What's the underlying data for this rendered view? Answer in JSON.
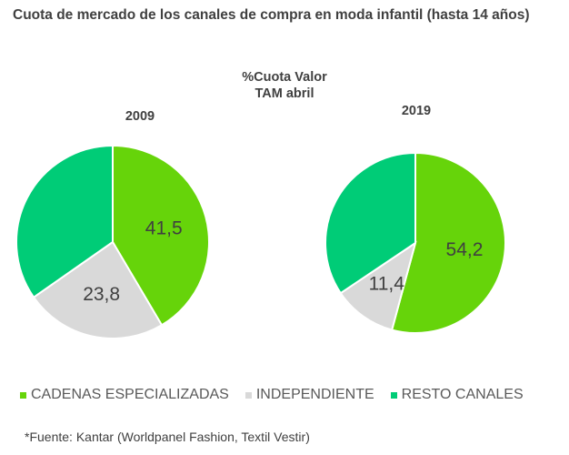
{
  "chart_data": [
    {
      "type": "pie",
      "title": "2009",
      "categories": [
        "CADENAS ESPECIALIZADAS",
        "INDEPENDIENTE",
        "RESTO CANALES"
      ],
      "values": [
        41.5,
        23.8,
        34.7
      ],
      "labels": [
        "41,5",
        "23,8",
        ""
      ]
    },
    {
      "type": "pie",
      "title": "2019",
      "categories": [
        "CADENAS ESPECIALIZADAS",
        "INDEPENDIENTE",
        "RESTO CANALES"
      ],
      "values": [
        54.2,
        11.4,
        34.4
      ],
      "labels": [
        "54,2",
        "11,4",
        ""
      ]
    }
  ],
  "title": "Cuota de mercado de los canales de compra en moda infantil (hasta 14 años)",
  "subtitle1": "%Cuota Valor",
  "subtitle2": "TAM abril",
  "legend": [
    {
      "label": "CADENAS ESPECIALIZADAS",
      "color": "#66d40a"
    },
    {
      "label": "INDEPENDIENTE",
      "color": "#d9d9d9"
    },
    {
      "label": "RESTO CANALES",
      "color": "#00cc77"
    }
  ],
  "source": "*Fuente: Kantar (Worldpanel Fashion, Textil Vestir)",
  "legend_position": "bottom"
}
